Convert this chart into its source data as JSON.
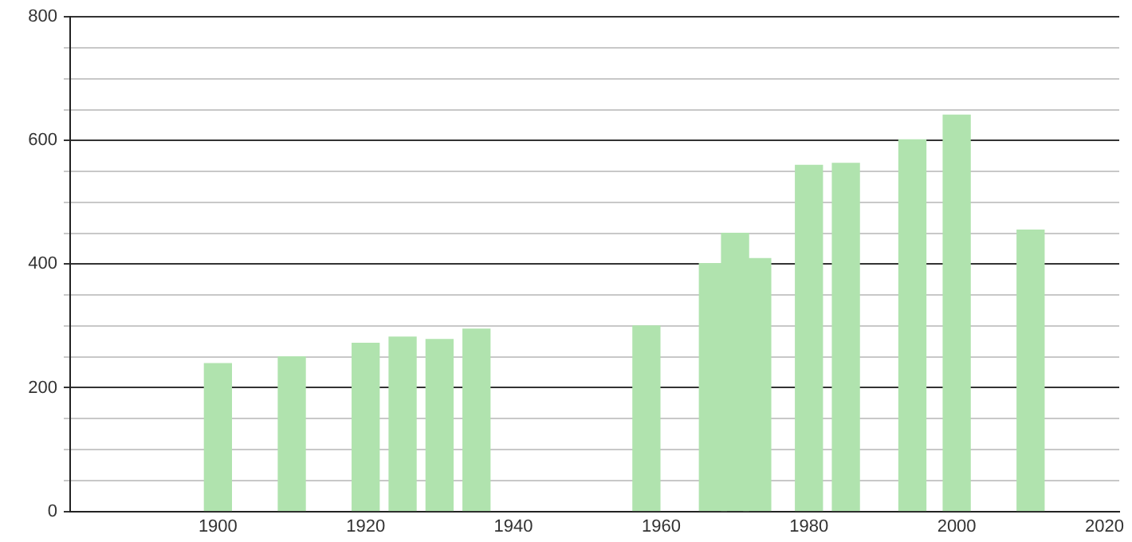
{
  "chart_data": {
    "type": "bar",
    "x": [
      1900,
      1910,
      1920,
      1925,
      1930,
      1935,
      1958,
      1967,
      1970,
      1973,
      1980,
      1985,
      1994,
      2000,
      2010
    ],
    "values": [
      239,
      250,
      272,
      282,
      278,
      295,
      300,
      401,
      450,
      409,
      560,
      563,
      601,
      641,
      455
    ],
    "color": "#b0e3ae",
    "xlim": [
      1880,
      2022
    ],
    "xticks": [
      1900,
      1920,
      1940,
      1960,
      1980,
      2000,
      2020
    ],
    "ylim": [
      0,
      800
    ],
    "yticks": [
      0,
      {
        "value": 50,
        "label": null
      },
      {
        "value": 100,
        "label": null
      },
      {
        "value": 150,
        "label": null
      },
      200,
      {
        "value": 250,
        "label": null
      },
      {
        "value": 300,
        "label": null
      },
      {
        "value": 350,
        "label": null
      },
      400,
      {
        "value": 450,
        "label": null
      },
      {
        "value": 500,
        "label": null
      },
      {
        "value": 550,
        "label": null
      },
      600,
      {
        "value": 650,
        "label": null
      },
      {
        "value": 700,
        "label": null
      },
      {
        "value": 750,
        "label": null
      },
      800
    ],
    "grid": "y"
  }
}
